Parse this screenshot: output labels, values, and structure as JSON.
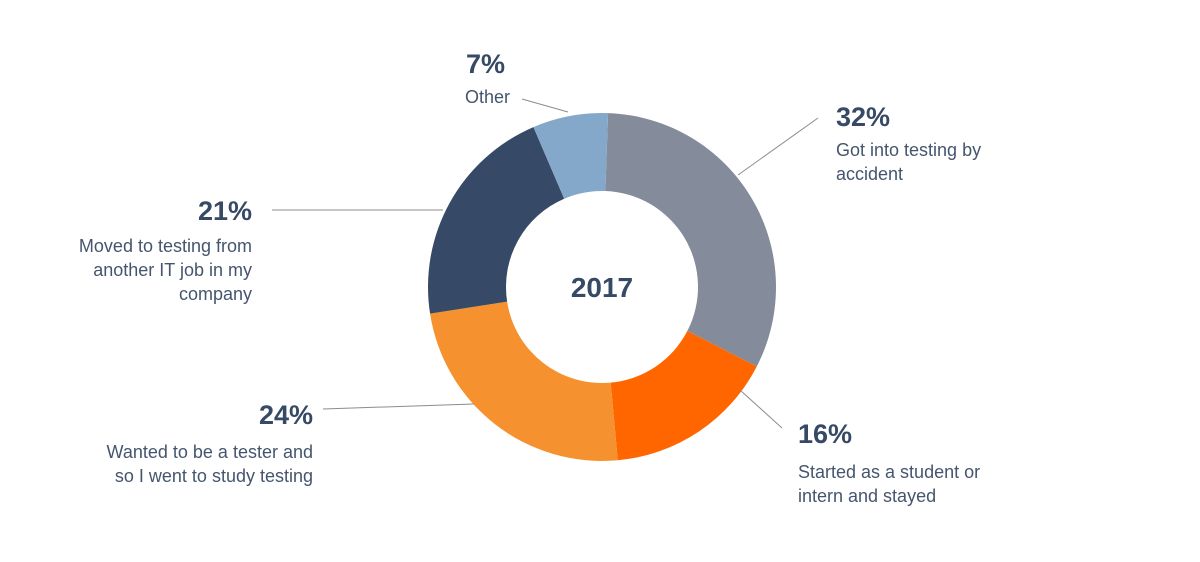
{
  "chart_data": {
    "type": "pie",
    "variant": "donut",
    "center_label": "2017",
    "slices": [
      {
        "label": [
          "Got into testing by",
          "accident"
        ],
        "value": 32,
        "display": "32%",
        "color": "#848c9b"
      },
      {
        "label": [
          "Started as a student or",
          "intern and stayed"
        ],
        "value": 16,
        "display": "16%",
        "color": "#ff6600"
      },
      {
        "label": [
          "Wanted to be a tester and",
          "so I went to study testing"
        ],
        "value": 24,
        "display": "24%",
        "color": "#f5922f"
      },
      {
        "label": [
          "Moved to testing from",
          "another IT job in my",
          "company"
        ],
        "value": 21,
        "display": "21%",
        "color": "#364966"
      },
      {
        "label": [
          "Other"
        ],
        "value": 7,
        "display": "7%",
        "color": "#84a8ca"
      }
    ]
  }
}
